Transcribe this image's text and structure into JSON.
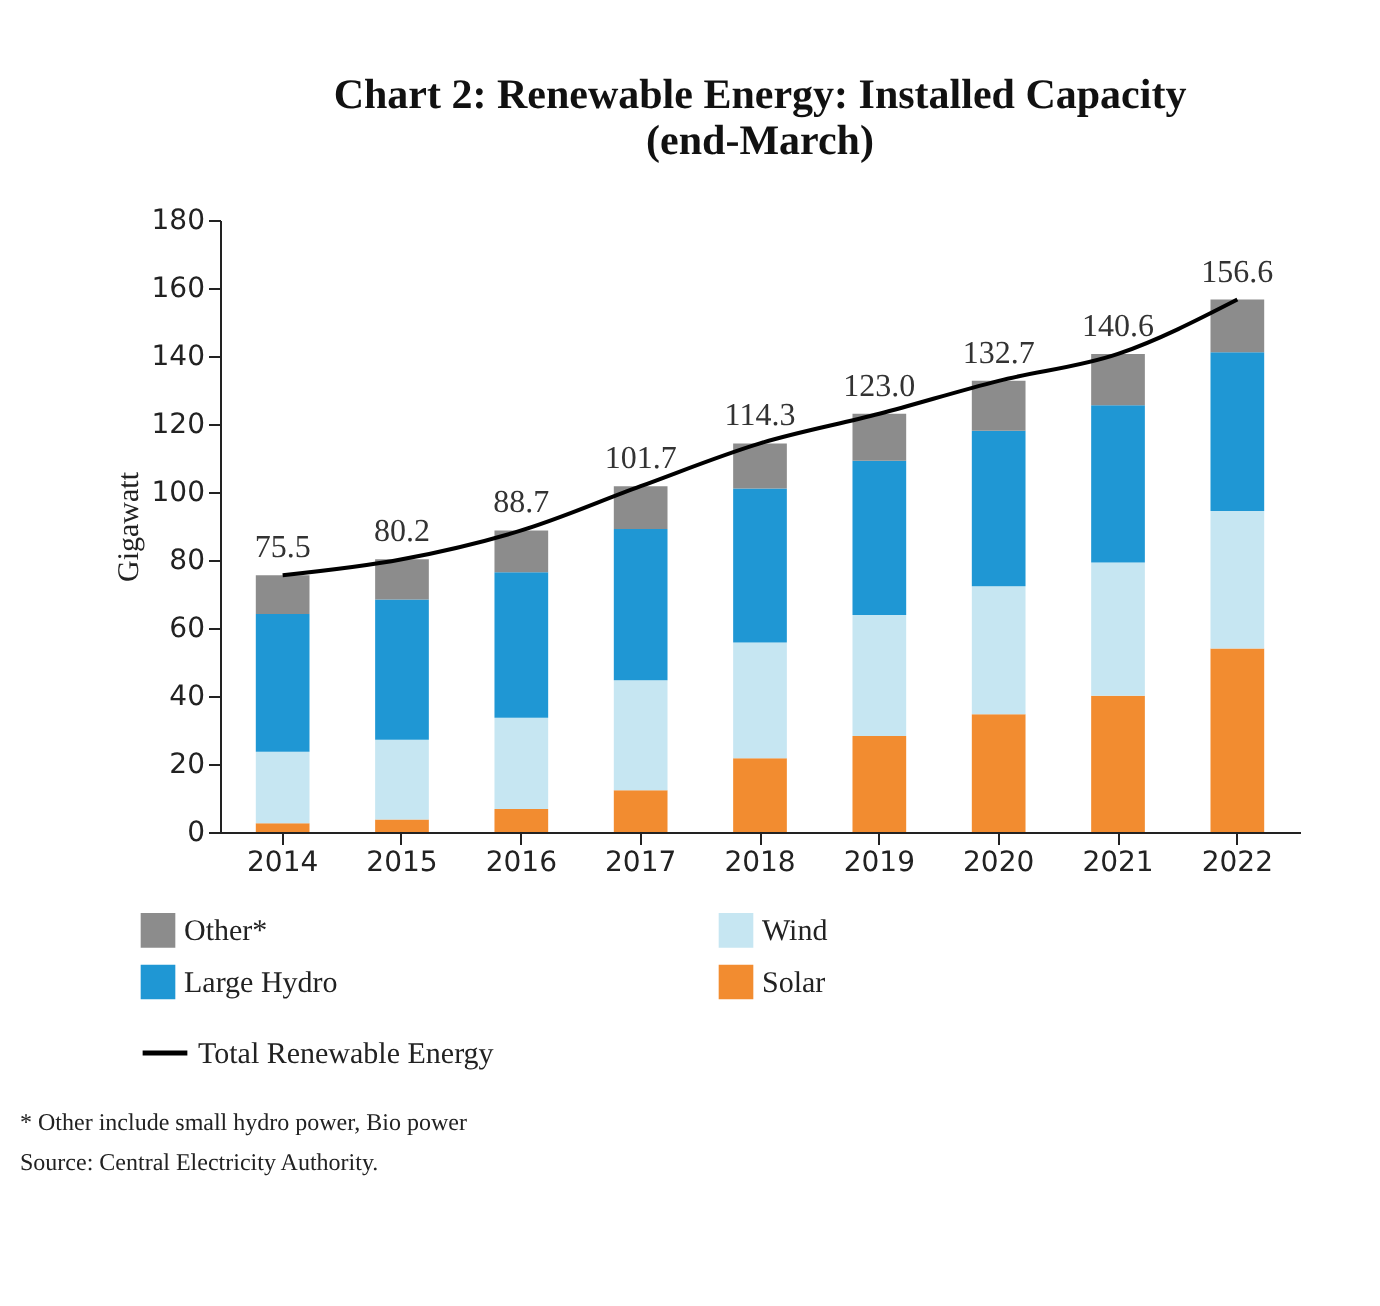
{
  "chart_data": {
    "type": "bar",
    "title": "Chart 2: Renewable Energy: Installed Capacity (end-March)",
    "ylabel": "Gigawatt",
    "categories": [
      "2014",
      "2015",
      "2016",
      "2017",
      "2018",
      "2019",
      "2020",
      "2021",
      "2022"
    ],
    "stacked": true,
    "series": [
      {
        "name": "Solar",
        "color": "#f28c30",
        "values": [
          2.6,
          3.7,
          6.8,
          12.3,
          21.7,
          28.2,
          34.6,
          40.1,
          54.0
        ]
      },
      {
        "name": "Wind",
        "color": "#c6e6f2",
        "values": [
          21.0,
          23.4,
          26.8,
          32.3,
          34.0,
          35.6,
          37.7,
          39.2,
          40.4
        ]
      },
      {
        "name": "Large Hydro",
        "color": "#1f97d4",
        "values": [
          40.5,
          41.3,
          42.8,
          44.5,
          45.3,
          45.4,
          45.7,
          46.2,
          46.7
        ]
      },
      {
        "name": "Other*",
        "color": "#8c8c8c",
        "values": [
          11.4,
          11.8,
          12.3,
          12.6,
          13.3,
          13.8,
          14.7,
          15.1,
          15.5
        ]
      },
      {
        "name": "Total Renewable Energy",
        "type": "line",
        "color": "#000000",
        "values": [
          75.5,
          80.2,
          88.7,
          101.7,
          114.3,
          123.0,
          132.7,
          140.6,
          156.6
        ],
        "value_labels": [
          "75.5",
          "80.2",
          "88.7",
          "101.7",
          "114.3",
          "123.0",
          "132.7",
          "140.6",
          "156.6"
        ]
      }
    ],
    "ylim": [
      0,
      180
    ],
    "yticks": [
      0,
      20,
      40,
      60,
      80,
      100,
      120,
      140,
      160,
      180
    ],
    "grid": false,
    "legend": "bottom",
    "annotations": [
      "* Other include small hydro power, Bio power",
      "Source: Central Electricity Authority."
    ]
  }
}
